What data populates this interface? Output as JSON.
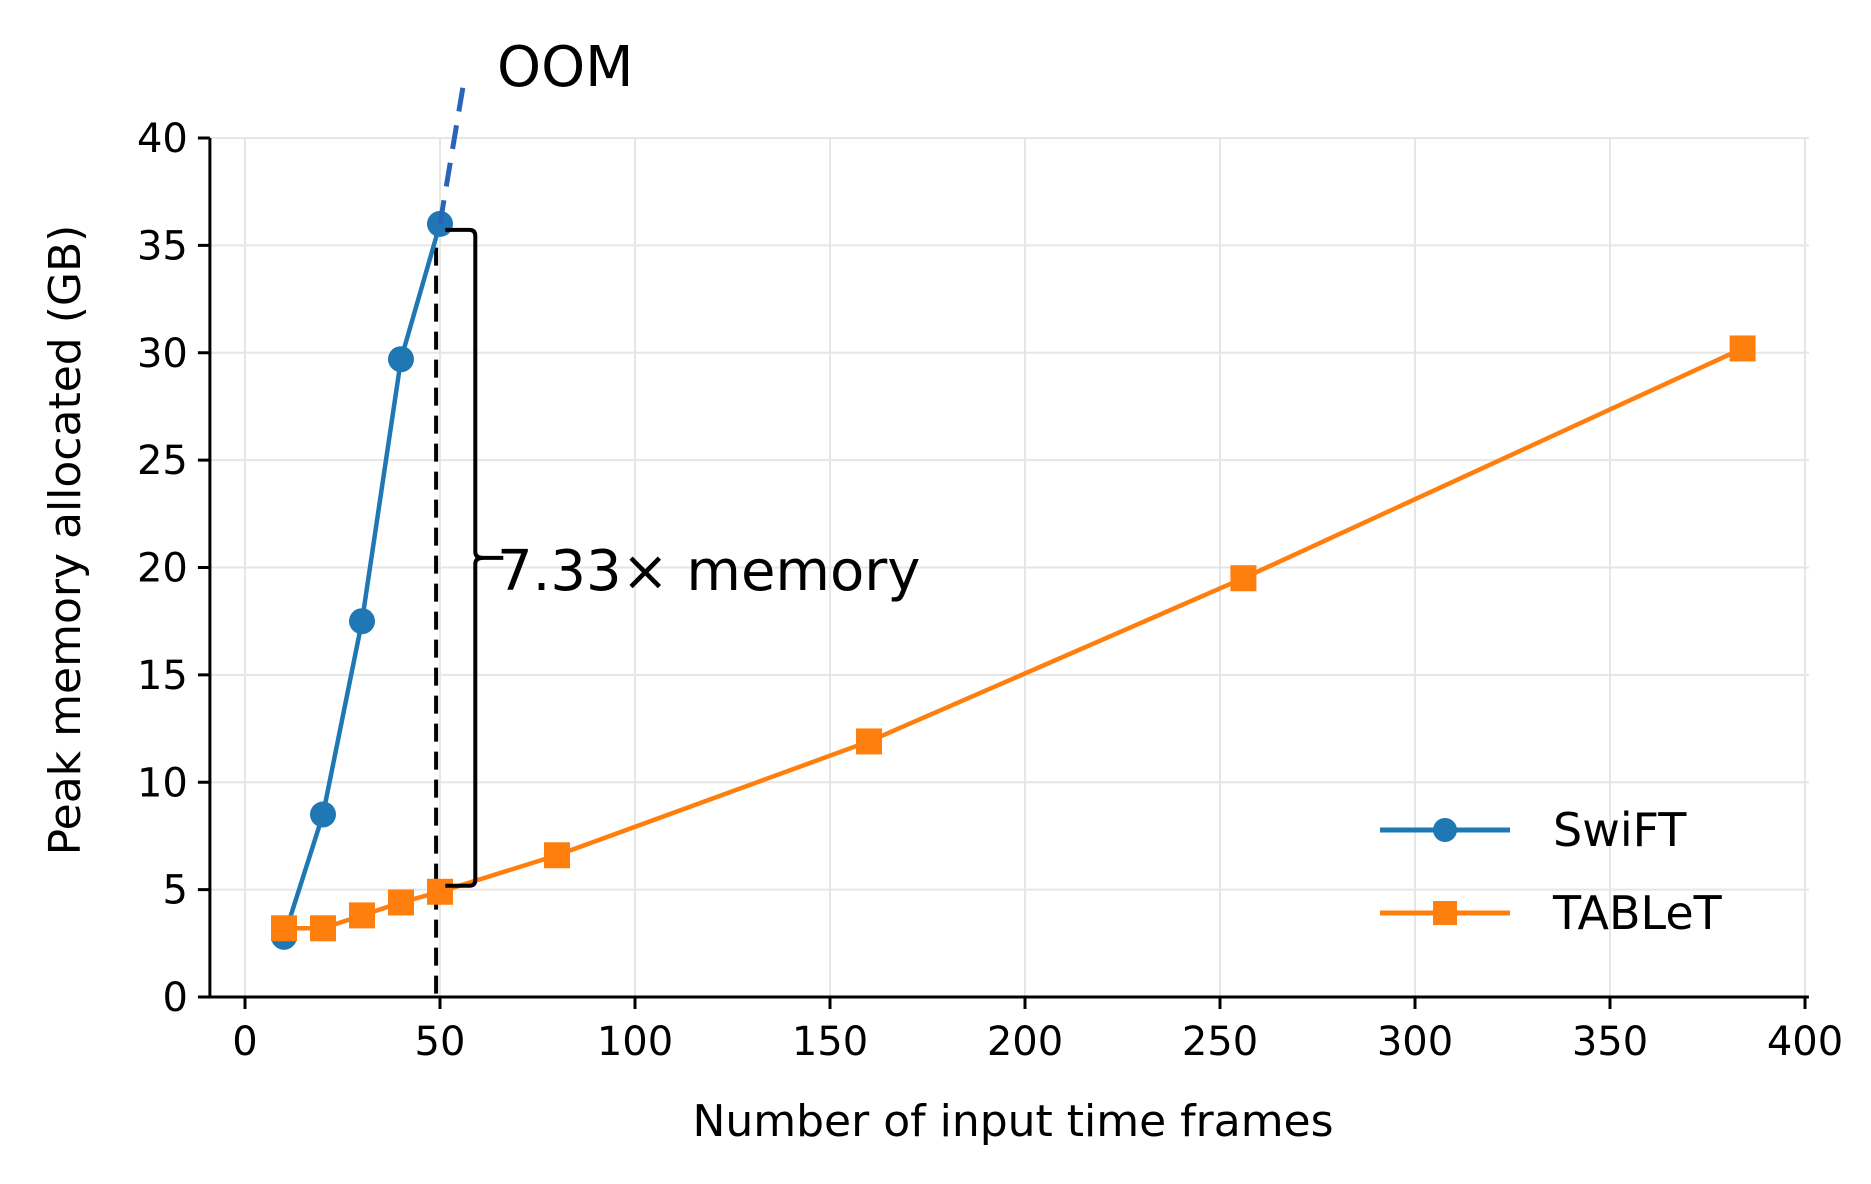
{
  "chart_data": {
    "type": "line",
    "title": "",
    "xlabel": "Number of input time frames",
    "ylabel": "Peak memory allocated (GB)",
    "xlim": [
      -9,
      401
    ],
    "ylim": [
      0,
      40
    ],
    "xticks": [
      0,
      50,
      100,
      150,
      200,
      250,
      300,
      350,
      400
    ],
    "yticks": [
      0,
      5,
      10,
      15,
      20,
      25,
      30,
      35,
      40
    ],
    "grid": true,
    "legend_position": "lower right",
    "series": [
      {
        "name": "SwiFT",
        "color": "#1f77b4",
        "marker": "circle",
        "x": [
          10,
          20,
          30,
          40,
          50
        ],
        "y": [
          2.8,
          8.5,
          17.5,
          29.7,
          36.0
        ]
      },
      {
        "name": "TABLeT",
        "color": "#ff7f0e",
        "marker": "square",
        "x": [
          10,
          20,
          30,
          40,
          50,
          80,
          160,
          256,
          384
        ],
        "y": [
          3.2,
          3.2,
          3.8,
          4.4,
          4.9,
          6.6,
          11.9,
          19.5,
          30.2
        ]
      }
    ],
    "annotations": [
      {
        "type": "dashed-extension",
        "series": "SwiFT",
        "from": [
          50,
          36.0
        ],
        "to": [
          56,
          42.5
        ],
        "color": "#2a64b8"
      },
      {
        "type": "text",
        "text": "OOM",
        "x": 65,
        "y": 43.8
      },
      {
        "type": "vline",
        "x": 49,
        "style": "dashed",
        "color": "#000000"
      },
      {
        "type": "brace",
        "x": 57,
        "y_from": 4.9,
        "y_to": 36.0,
        "label": "7.33× memory"
      }
    ]
  },
  "labels": {
    "oom": "OOM",
    "brace": "7.33× memory",
    "xlabel": "Number of input time frames",
    "ylabel": "Peak memory allocated (GB)",
    "legend_swift": "SwiFT",
    "legend_tablet": "TABLeT"
  }
}
